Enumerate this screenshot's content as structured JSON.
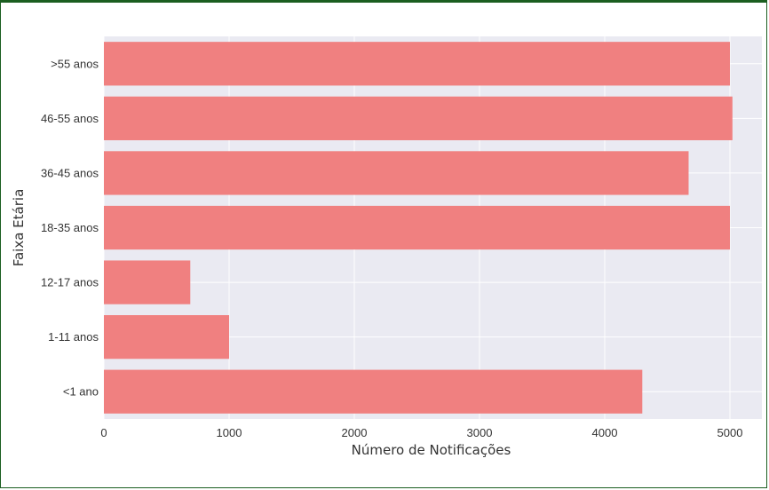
{
  "chart_data": {
    "type": "bar",
    "orientation": "horizontal",
    "title": "",
    "xlabel": "Número de Notificações",
    "ylabel": "Faixa Etária",
    "categories": [
      ">55 anos",
      "46-55 anos",
      "36-45 anos",
      "18-35 anos",
      "12-17 anos",
      "1-11 anos",
      "<1 ano"
    ],
    "values": [
      5000,
      5020,
      4670,
      5000,
      690,
      1000,
      4300
    ],
    "xlim": [
      -10,
      5230
    ],
    "xticks": [
      0,
      1000,
      2000,
      3000,
      4000,
      5000
    ],
    "xtick_labels": [
      "0",
      "1000",
      "2000",
      "3000",
      "4000",
      "5000"
    ],
    "grid": true,
    "bar_color": "#f08080",
    "plot_background": "#eaeaf2",
    "grid_color": "#ffffff"
  }
}
